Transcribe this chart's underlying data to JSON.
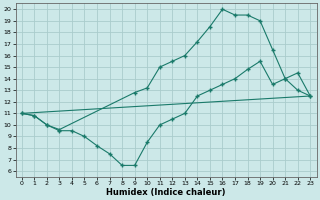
{
  "bg_color": "#cce8e8",
  "grid_color": "#aacccc",
  "line_color": "#1a7a6a",
  "xlabel": "Humidex (Indice chaleur)",
  "xlim": [
    -0.5,
    23.5
  ],
  "ylim": [
    5.5,
    20.5
  ],
  "yticks": [
    6,
    7,
    8,
    9,
    10,
    11,
    12,
    13,
    14,
    15,
    16,
    17,
    18,
    19,
    20
  ],
  "xticks": [
    0,
    1,
    2,
    3,
    4,
    5,
    6,
    7,
    8,
    9,
    10,
    11,
    12,
    13,
    14,
    15,
    16,
    17,
    18,
    19,
    20,
    21,
    22,
    23
  ],
  "curve1_x": [
    0,
    1,
    2,
    3,
    9,
    10,
    11,
    12,
    13,
    14,
    15,
    16,
    17,
    18,
    19,
    20,
    21,
    22,
    23
  ],
  "curve1_y": [
    11.0,
    10.8,
    10.0,
    9.6,
    12.8,
    13.2,
    15.0,
    15.5,
    16.0,
    17.2,
    18.5,
    20.0,
    19.5,
    19.5,
    19.0,
    16.5,
    14.0,
    13.0,
    12.5
  ],
  "curve2_x": [
    0,
    1,
    2,
    3,
    4,
    5,
    6,
    7,
    8,
    9,
    10,
    11,
    12,
    13,
    14,
    15,
    16,
    17,
    18,
    19,
    20,
    21,
    22,
    23
  ],
  "curve2_y": [
    11.0,
    10.8,
    10.0,
    9.5,
    9.5,
    9.0,
    8.2,
    7.5,
    6.5,
    6.5,
    8.5,
    10.0,
    10.5,
    11.0,
    12.5,
    13.0,
    13.5,
    14.0,
    14.8,
    15.5,
    13.5,
    14.0,
    14.5,
    12.5
  ],
  "curve3_x": [
    0,
    23
  ],
  "curve3_y": [
    11.0,
    12.5
  ]
}
